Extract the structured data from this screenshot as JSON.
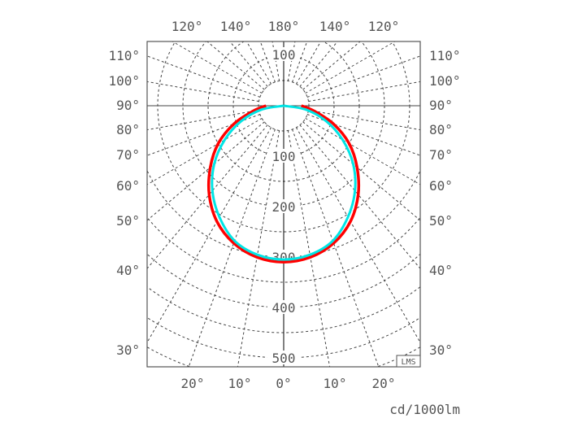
{
  "chart_data": {
    "type": "polar",
    "unit_label": "cd/1000lm",
    "logo": "LMS",
    "radial_ticks": [
      "100",
      "200",
      "300",
      "400",
      "500"
    ],
    "radial_values": [
      100,
      200,
      300,
      400,
      500
    ],
    "angle_labels_top": [
      "120°",
      "140°",
      "180°",
      "140°",
      "120°"
    ],
    "angle_labels_side": [
      "110°",
      "100°",
      "90°",
      "80°",
      "70°",
      "60°",
      "50°",
      "40°",
      "30°"
    ],
    "angle_labels_bottom": [
      "20°",
      "10°",
      "0°",
      "10°",
      "20°"
    ],
    "grid": true,
    "angles": [
      0,
      10,
      20,
      30,
      40,
      50,
      60,
      70,
      80,
      90
    ],
    "series": [
      {
        "color": "#ff0000",
        "values": [
          310,
          305,
          290,
          265,
          230,
          190,
          150,
          105,
          62,
          35
        ]
      },
      {
        "color": "#00e5e5",
        "values": [
          305,
          300,
          285,
          255,
          220,
          180,
          135,
          90,
          45,
          0
        ]
      }
    ]
  }
}
